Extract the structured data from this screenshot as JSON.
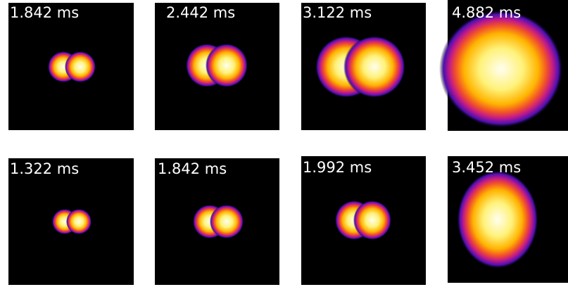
{
  "rows": [
    [
      {
        "label": "1.842 ms"
      },
      {
        "label": "2.442 ms"
      },
      {
        "label": "3.122 ms"
      },
      {
        "label": "4.882 ms"
      }
    ],
    [
      {
        "label": "1.322 ms"
      },
      {
        "label": "1.842 ms"
      },
      {
        "label": "1.992 ms"
      },
      {
        "label": "3.452 ms"
      }
    ]
  ]
}
